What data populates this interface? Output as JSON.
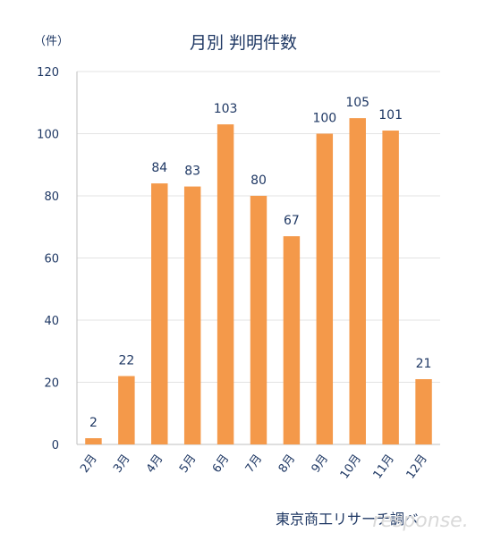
{
  "chart_data": {
    "type": "bar",
    "title": "月別 判明件数",
    "unit_label": "（件）",
    "categories": [
      "2月",
      "3月",
      "4月",
      "5月",
      "6月",
      "7月",
      "8月",
      "9月",
      "10月",
      "11月",
      "12月"
    ],
    "values": [
      2,
      22,
      84,
      83,
      103,
      80,
      67,
      100,
      105,
      101,
      21
    ],
    "ylim": [
      0,
      120
    ],
    "yticks": [
      0,
      20,
      40,
      60,
      80,
      100,
      120
    ],
    "grid": true,
    "bar_color": "#f4994a",
    "source": "東京商工リサーチ調べ",
    "watermark": "response."
  }
}
